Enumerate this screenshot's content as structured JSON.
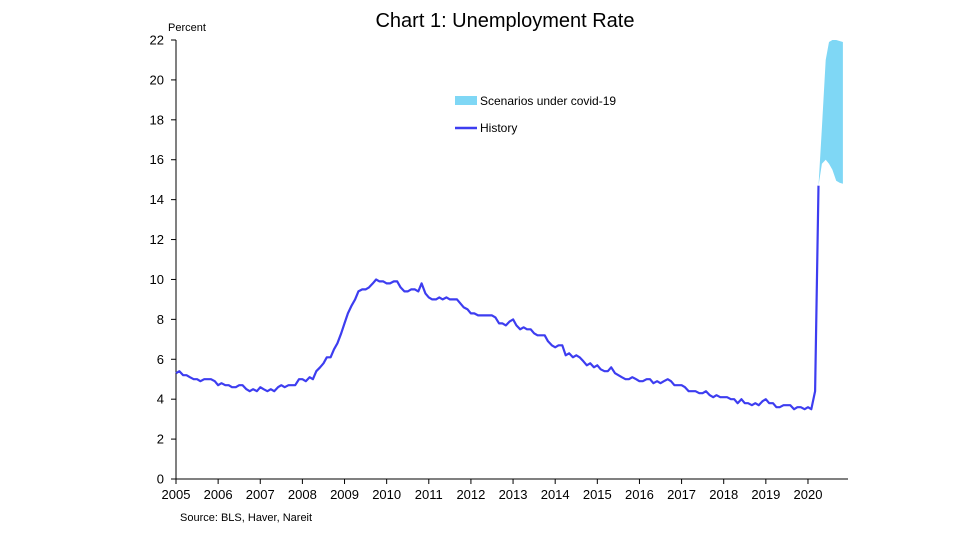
{
  "chart_data": {
    "type": "line",
    "title": "Chart 1: Unemployment Rate",
    "ylabel": "Percent",
    "xlabel": "",
    "source": "Source: BLS, Haver, Nareit",
    "x_tick_labels": [
      "2005",
      "2006",
      "2007",
      "2008",
      "2009",
      "2010",
      "2011",
      "2012",
      "2013",
      "2014",
      "2015",
      "2016",
      "2017",
      "2018",
      "2019",
      "2020"
    ],
    "y_ticks": [
      0,
      2,
      4,
      6,
      8,
      10,
      12,
      14,
      16,
      18,
      20,
      22
    ],
    "xlim": [
      2005.0,
      2020.95
    ],
    "ylim": [
      0,
      22
    ],
    "grid": false,
    "legend": {
      "placement": "center-top",
      "entries": [
        {
          "label": "Scenarios under covid-19",
          "kind": "area"
        },
        {
          "label": "History",
          "kind": "line"
        }
      ]
    },
    "colors": {
      "history": "#3d3df0",
      "scenario": "#7fd7f5"
    },
    "series": [
      {
        "name": "History",
        "kind": "line",
        "points": [
          [
            2005.0,
            5.3
          ],
          [
            2005.08,
            5.4
          ],
          [
            2005.17,
            5.2
          ],
          [
            2005.25,
            5.2
          ],
          [
            2005.33,
            5.1
          ],
          [
            2005.42,
            5.0
          ],
          [
            2005.5,
            5.0
          ],
          [
            2005.58,
            4.9
          ],
          [
            2005.67,
            5.0
          ],
          [
            2005.75,
            5.0
          ],
          [
            2005.83,
            5.0
          ],
          [
            2005.92,
            4.9
          ],
          [
            2006.0,
            4.7
          ],
          [
            2006.08,
            4.8
          ],
          [
            2006.17,
            4.7
          ],
          [
            2006.25,
            4.7
          ],
          [
            2006.33,
            4.6
          ],
          [
            2006.42,
            4.6
          ],
          [
            2006.5,
            4.7
          ],
          [
            2006.58,
            4.7
          ],
          [
            2006.67,
            4.5
          ],
          [
            2006.75,
            4.4
          ],
          [
            2006.83,
            4.5
          ],
          [
            2006.92,
            4.4
          ],
          [
            2007.0,
            4.6
          ],
          [
            2007.08,
            4.5
          ],
          [
            2007.17,
            4.4
          ],
          [
            2007.25,
            4.5
          ],
          [
            2007.33,
            4.4
          ],
          [
            2007.42,
            4.6
          ],
          [
            2007.5,
            4.7
          ],
          [
            2007.58,
            4.6
          ],
          [
            2007.67,
            4.7
          ],
          [
            2007.75,
            4.7
          ],
          [
            2007.83,
            4.7
          ],
          [
            2007.92,
            5.0
          ],
          [
            2008.0,
            5.0
          ],
          [
            2008.08,
            4.9
          ],
          [
            2008.17,
            5.1
          ],
          [
            2008.25,
            5.0
          ],
          [
            2008.33,
            5.4
          ],
          [
            2008.42,
            5.6
          ],
          [
            2008.5,
            5.8
          ],
          [
            2008.58,
            6.1
          ],
          [
            2008.67,
            6.1
          ],
          [
            2008.75,
            6.5
          ],
          [
            2008.83,
            6.8
          ],
          [
            2008.92,
            7.3
          ],
          [
            2009.0,
            7.8
          ],
          [
            2009.08,
            8.3
          ],
          [
            2009.17,
            8.7
          ],
          [
            2009.25,
            9.0
          ],
          [
            2009.33,
            9.4
          ],
          [
            2009.42,
            9.5
          ],
          [
            2009.5,
            9.5
          ],
          [
            2009.58,
            9.6
          ],
          [
            2009.67,
            9.8
          ],
          [
            2009.75,
            10.0
          ],
          [
            2009.83,
            9.9
          ],
          [
            2009.92,
            9.9
          ],
          [
            2010.0,
            9.8
          ],
          [
            2010.08,
            9.8
          ],
          [
            2010.17,
            9.9
          ],
          [
            2010.25,
            9.9
          ],
          [
            2010.33,
            9.6
          ],
          [
            2010.42,
            9.4
          ],
          [
            2010.5,
            9.4
          ],
          [
            2010.58,
            9.5
          ],
          [
            2010.67,
            9.5
          ],
          [
            2010.75,
            9.4
          ],
          [
            2010.83,
            9.8
          ],
          [
            2010.92,
            9.3
          ],
          [
            2011.0,
            9.1
          ],
          [
            2011.08,
            9.0
          ],
          [
            2011.17,
            9.0
          ],
          [
            2011.25,
            9.1
          ],
          [
            2011.33,
            9.0
          ],
          [
            2011.42,
            9.1
          ],
          [
            2011.5,
            9.0
          ],
          [
            2011.58,
            9.0
          ],
          [
            2011.67,
            9.0
          ],
          [
            2011.75,
            8.8
          ],
          [
            2011.83,
            8.6
          ],
          [
            2011.92,
            8.5
          ],
          [
            2012.0,
            8.3
          ],
          [
            2012.08,
            8.3
          ],
          [
            2012.17,
            8.2
          ],
          [
            2012.25,
            8.2
          ],
          [
            2012.33,
            8.2
          ],
          [
            2012.42,
            8.2
          ],
          [
            2012.5,
            8.2
          ],
          [
            2012.58,
            8.1
          ],
          [
            2012.67,
            7.8
          ],
          [
            2012.75,
            7.8
          ],
          [
            2012.83,
            7.7
          ],
          [
            2012.92,
            7.9
          ],
          [
            2013.0,
            8.0
          ],
          [
            2013.08,
            7.7
          ],
          [
            2013.17,
            7.5
          ],
          [
            2013.25,
            7.6
          ],
          [
            2013.33,
            7.5
          ],
          [
            2013.42,
            7.5
          ],
          [
            2013.5,
            7.3
          ],
          [
            2013.58,
            7.2
          ],
          [
            2013.67,
            7.2
          ],
          [
            2013.75,
            7.2
          ],
          [
            2013.83,
            6.9
          ],
          [
            2013.92,
            6.7
          ],
          [
            2014.0,
            6.6
          ],
          [
            2014.08,
            6.7
          ],
          [
            2014.17,
            6.7
          ],
          [
            2014.25,
            6.2
          ],
          [
            2014.33,
            6.3
          ],
          [
            2014.42,
            6.1
          ],
          [
            2014.5,
            6.2
          ],
          [
            2014.58,
            6.1
          ],
          [
            2014.67,
            5.9
          ],
          [
            2014.75,
            5.7
          ],
          [
            2014.83,
            5.8
          ],
          [
            2014.92,
            5.6
          ],
          [
            2015.0,
            5.7
          ],
          [
            2015.08,
            5.5
          ],
          [
            2015.17,
            5.4
          ],
          [
            2015.25,
            5.4
          ],
          [
            2015.33,
            5.6
          ],
          [
            2015.42,
            5.3
          ],
          [
            2015.5,
            5.2
          ],
          [
            2015.58,
            5.1
          ],
          [
            2015.67,
            5.0
          ],
          [
            2015.75,
            5.0
          ],
          [
            2015.83,
            5.1
          ],
          [
            2015.92,
            5.0
          ],
          [
            2016.0,
            4.9
          ],
          [
            2016.08,
            4.9
          ],
          [
            2016.17,
            5.0
          ],
          [
            2016.25,
            5.0
          ],
          [
            2016.33,
            4.8
          ],
          [
            2016.42,
            4.9
          ],
          [
            2016.5,
            4.8
          ],
          [
            2016.58,
            4.9
          ],
          [
            2016.67,
            5.0
          ],
          [
            2016.75,
            4.9
          ],
          [
            2016.83,
            4.7
          ],
          [
            2016.92,
            4.7
          ],
          [
            2017.0,
            4.7
          ],
          [
            2017.08,
            4.6
          ],
          [
            2017.17,
            4.4
          ],
          [
            2017.25,
            4.4
          ],
          [
            2017.33,
            4.4
          ],
          [
            2017.42,
            4.3
          ],
          [
            2017.5,
            4.3
          ],
          [
            2017.58,
            4.4
          ],
          [
            2017.67,
            4.2
          ],
          [
            2017.75,
            4.1
          ],
          [
            2017.83,
            4.2
          ],
          [
            2017.92,
            4.1
          ],
          [
            2018.0,
            4.1
          ],
          [
            2018.08,
            4.1
          ],
          [
            2018.17,
            4.0
          ],
          [
            2018.25,
            4.0
          ],
          [
            2018.33,
            3.8
          ],
          [
            2018.42,
            4.0
          ],
          [
            2018.5,
            3.8
          ],
          [
            2018.58,
            3.8
          ],
          [
            2018.67,
            3.7
          ],
          [
            2018.75,
            3.8
          ],
          [
            2018.83,
            3.7
          ],
          [
            2018.92,
            3.9
          ],
          [
            2019.0,
            4.0
          ],
          [
            2019.08,
            3.8
          ],
          [
            2019.17,
            3.8
          ],
          [
            2019.25,
            3.6
          ],
          [
            2019.33,
            3.6
          ],
          [
            2019.42,
            3.7
          ],
          [
            2019.5,
            3.7
          ],
          [
            2019.58,
            3.7
          ],
          [
            2019.67,
            3.5
          ],
          [
            2019.75,
            3.6
          ],
          [
            2019.83,
            3.6
          ],
          [
            2019.92,
            3.5
          ],
          [
            2020.0,
            3.6
          ],
          [
            2020.08,
            3.5
          ],
          [
            2020.17,
            4.4
          ],
          [
            2020.25,
            14.7
          ]
        ]
      },
      {
        "name": "Scenarios under covid-19",
        "kind": "area",
        "upper": [
          [
            2020.25,
            14.7
          ],
          [
            2020.33,
            17.6
          ],
          [
            2020.42,
            21.0
          ],
          [
            2020.5,
            21.9
          ],
          [
            2020.58,
            22.0
          ],
          [
            2020.67,
            22.0
          ],
          [
            2020.75,
            21.95
          ],
          [
            2020.83,
            21.9
          ]
        ],
        "lower": [
          [
            2020.25,
            14.7
          ],
          [
            2020.33,
            15.8
          ],
          [
            2020.42,
            16.0
          ],
          [
            2020.5,
            15.8
          ],
          [
            2020.58,
            15.5
          ],
          [
            2020.67,
            14.95
          ],
          [
            2020.75,
            14.85
          ],
          [
            2020.83,
            14.8
          ]
        ]
      }
    ]
  }
}
